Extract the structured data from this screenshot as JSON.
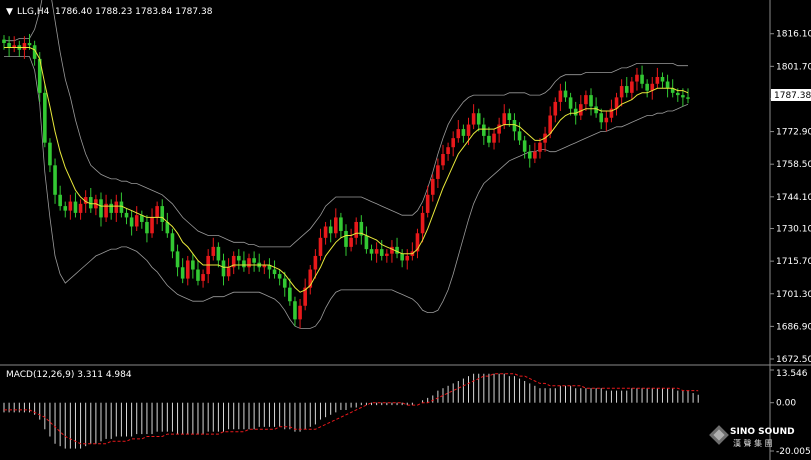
{
  "header": {
    "symbol_label": "LLG,H4",
    "ohlc": "1786.40 1788.23 1783.84 1787.38"
  },
  "indicator": {
    "label": "MACD(12,26,9) 3.311 4.984"
  },
  "watermark": {
    "brand": "SINO SOUND",
    "chinese": "漢 聲 集 團"
  },
  "colors": {
    "background": "#000000",
    "bull": "#e8191b",
    "bear": "#33c833",
    "ma": "#e8e83a",
    "bands": "#9a9a9a",
    "hist": "#d8d8d8",
    "signal": "#e8191b",
    "grid_line": "#8a8a8a"
  },
  "chart_data": [
    {
      "type": "candlestick",
      "title": "LLG,H4",
      "ylim": [
        1672.5,
        1822.6
      ],
      "y_ticks": [
        "1816.10",
        "1801.70",
        "1787.38",
        "1772.90",
        "1758.50",
        "1744.10",
        "1730.10",
        "1715.70",
        "1701.30",
        "1686.90",
        "1672.50"
      ],
      "current_price": "1787.38",
      "series_close": [
        1812,
        1810,
        1811,
        1809,
        1812,
        1811,
        1805,
        1790,
        1768,
        1758,
        1745,
        1740,
        1738,
        1742,
        1737,
        1741,
        1744,
        1739,
        1743,
        1735,
        1741,
        1737,
        1742,
        1737,
        1735,
        1731,
        1736,
        1733,
        1728,
        1735,
        1740,
        1733,
        1728,
        1720,
        1713,
        1708,
        1716,
        1712,
        1707,
        1710,
        1718,
        1722,
        1716,
        1709,
        1713,
        1718,
        1716,
        1713,
        1717,
        1715,
        1713,
        1714,
        1712,
        1710,
        1708,
        1704,
        1698,
        1690,
        1696,
        1704,
        1712,
        1718,
        1726,
        1731,
        1728,
        1735,
        1729,
        1722,
        1726,
        1733,
        1727,
        1721,
        1719,
        1721,
        1718,
        1719,
        1722,
        1719,
        1716,
        1718,
        1720,
        1728,
        1737,
        1745,
        1752,
        1758,
        1763,
        1766,
        1770,
        1774,
        1771,
        1776,
        1781,
        1776,
        1771,
        1768,
        1772,
        1776,
        1781,
        1778,
        1773,
        1769,
        1764,
        1761,
        1764,
        1768,
        1772,
        1780,
        1786,
        1791,
        1788,
        1783,
        1780,
        1785,
        1789,
        1784,
        1781,
        1777,
        1779,
        1783,
        1788,
        1793,
        1790,
        1795,
        1798,
        1794,
        1791,
        1794,
        1797,
        1795,
        1792,
        1790,
        1789,
        1788,
        1787.38
      ],
      "bb_upper": [
        1813,
        1813,
        1813,
        1814,
        1814,
        1814,
        1818,
        1826,
        1838,
        1836,
        1822,
        1808,
        1796,
        1788,
        1778,
        1770,
        1763,
        1758,
        1756,
        1754,
        1753,
        1752,
        1752,
        1751,
        1751,
        1750,
        1750,
        1749,
        1748,
        1747,
        1746,
        1745,
        1743,
        1741,
        1738,
        1735,
        1733,
        1731,
        1729,
        1728,
        1727,
        1727,
        1727,
        1726,
        1725,
        1724,
        1724,
        1724,
        1723,
        1723,
        1722,
        1722,
        1722,
        1722,
        1722,
        1722,
        1722,
        1724,
        1726,
        1728,
        1730,
        1733,
        1736,
        1740,
        1742,
        1744,
        1744,
        1744,
        1744,
        1744,
        1744,
        1743,
        1742,
        1741,
        1740,
        1739,
        1738,
        1737,
        1736,
        1736,
        1736,
        1738,
        1742,
        1748,
        1755,
        1763,
        1770,
        1776,
        1780,
        1783,
        1786,
        1788,
        1789,
        1789,
        1789,
        1789,
        1789,
        1789,
        1789,
        1790,
        1790,
        1790,
        1790,
        1789,
        1789,
        1789,
        1790,
        1792,
        1795,
        1797,
        1798,
        1798,
        1798,
        1798,
        1799,
        1799,
        1799,
        1799,
        1799,
        1799,
        1800,
        1801,
        1801,
        1802,
        1803,
        1803,
        1803,
        1803,
        1803,
        1803,
        1803,
        1803,
        1802,
        1802,
        1802
      ],
      "bb_lower": [
        1806,
        1806,
        1806,
        1806,
        1806,
        1806,
        1800,
        1785,
        1755,
        1735,
        1718,
        1710,
        1706,
        1708,
        1710,
        1712,
        1714,
        1716,
        1718,
        1719,
        1720,
        1721,
        1721,
        1722,
        1722,
        1721,
        1720,
        1718,
        1716,
        1713,
        1711,
        1708,
        1705,
        1703,
        1701,
        1700,
        1699,
        1698,
        1698,
        1698,
        1699,
        1700,
        1700,
        1700,
        1701,
        1702,
        1702,
        1702,
        1702,
        1702,
        1702,
        1701,
        1700,
        1699,
        1697,
        1694,
        1690,
        1687,
        1686,
        1686,
        1686,
        1687,
        1690,
        1695,
        1699,
        1702,
        1703,
        1703,
        1703,
        1703,
        1703,
        1703,
        1703,
        1703,
        1703,
        1703,
        1703,
        1702,
        1701,
        1700,
        1699,
        1697,
        1694,
        1693,
        1693,
        1694,
        1698,
        1703,
        1710,
        1718,
        1726,
        1734,
        1741,
        1746,
        1750,
        1752,
        1754,
        1756,
        1758,
        1760,
        1761,
        1762,
        1763,
        1764,
        1764,
        1765,
        1765,
        1764,
        1764,
        1765,
        1766,
        1767,
        1768,
        1769,
        1770,
        1771,
        1772,
        1773,
        1773,
        1774,
        1775,
        1775,
        1776,
        1777,
        1778,
        1779,
        1780,
        1780,
        1781,
        1781,
        1782,
        1782,
        1783,
        1784,
        1785
      ],
      "ma": [
        1810,
        1810,
        1810,
        1810,
        1810,
        1810,
        1809,
        1805,
        1794,
        1784,
        1773,
        1764,
        1757,
        1752,
        1747,
        1744,
        1742,
        1741,
        1741,
        1740,
        1740,
        1740,
        1740,
        1740,
        1739,
        1738,
        1737,
        1736,
        1735,
        1735,
        1735,
        1735,
        1733,
        1731,
        1728,
        1724,
        1722,
        1719,
        1716,
        1714,
        1714,
        1714,
        1714,
        1713,
        1713,
        1714,
        1714,
        1714,
        1714,
        1714,
        1714,
        1714,
        1714,
        1713,
        1712,
        1710,
        1707,
        1704,
        1702,
        1703,
        1705,
        1709,
        1713,
        1718,
        1721,
        1724,
        1726,
        1727,
        1727,
        1728,
        1728,
        1727,
        1726,
        1725,
        1723,
        1722,
        1721,
        1720,
        1719,
        1719,
        1719,
        1721,
        1725,
        1730,
        1736,
        1742,
        1748,
        1753,
        1758,
        1763,
        1766,
        1769,
        1772,
        1774,
        1774,
        1774,
        1774,
        1775,
        1776,
        1776,
        1776,
        1775,
        1773,
        1771,
        1769,
        1769,
        1770,
        1772,
        1775,
        1778,
        1780,
        1781,
        1781,
        1782,
        1783,
        1783,
        1783,
        1782,
        1782,
        1782,
        1783,
        1785,
        1786,
        1787,
        1789,
        1790,
        1790,
        1791,
        1792,
        1792,
        1792,
        1792,
        1791,
        1791,
        1790
      ]
    },
    {
      "type": "bar",
      "title": "MACD(12,26,9)",
      "macd": 3.311,
      "signal": 4.984,
      "ylim": [
        -20.005,
        13.546
      ],
      "y_ticks": [
        "13.546",
        "0.00",
        "-20.005"
      ],
      "histogram": [
        -4,
        -4,
        -4,
        -4,
        -4,
        -4,
        -5,
        -7,
        -11,
        -14,
        -17,
        -18,
        -19,
        -19,
        -19,
        -19,
        -18,
        -17,
        -17,
        -16,
        -15,
        -15,
        -14,
        -14,
        -14,
        -14,
        -13,
        -13,
        -13,
        -13,
        -12,
        -12,
        -12,
        -12,
        -13,
        -13,
        -13,
        -13,
        -13,
        -13,
        -12,
        -12,
        -12,
        -12,
        -11,
        -11,
        -11,
        -11,
        -11,
        -11,
        -10,
        -10,
        -10,
        -10,
        -10,
        -11,
        -11,
        -12,
        -12,
        -11,
        -10,
        -9,
        -7,
        -6,
        -5,
        -4,
        -3,
        -3,
        -2,
        -2,
        -1,
        -1,
        -1,
        -1,
        -1,
        -1,
        -1,
        -1,
        -1,
        -1,
        -1,
        0,
        1,
        2,
        3,
        5,
        6,
        7,
        8,
        9,
        10,
        11,
        12,
        12,
        12,
        12,
        12,
        12,
        12,
        11,
        11,
        10,
        9,
        8,
        7,
        6,
        6,
        6,
        6,
        7,
        7,
        7,
        6,
        6,
        6,
        6,
        6,
        6,
        5,
        5,
        5,
        5,
        5,
        6,
        6,
        6,
        6,
        6,
        6,
        6,
        6,
        6,
        5,
        5,
        5,
        4,
        3.3
      ],
      "signal_line": [
        -3,
        -3,
        -3,
        -3,
        -3,
        -3,
        -4,
        -5,
        -6,
        -8,
        -10,
        -12,
        -14,
        -15,
        -16,
        -17,
        -17,
        -17,
        -17,
        -17,
        -17,
        -16,
        -16,
        -16,
        -16,
        -15,
        -15,
        -15,
        -14,
        -14,
        -14,
        -14,
        -13,
        -13,
        -13,
        -13,
        -13,
        -13,
        -13,
        -13,
        -13,
        -13,
        -13,
        -12,
        -12,
        -12,
        -12,
        -12,
        -11,
        -11,
        -11,
        -11,
        -11,
        -11,
        -10,
        -10,
        -10,
        -11,
        -11,
        -11,
        -11,
        -11,
        -10,
        -9,
        -8,
        -7,
        -6,
        -5,
        -4,
        -3,
        -2,
        -1,
        0,
        0,
        0,
        0,
        0,
        0,
        0,
        -1,
        -1,
        -1,
        0,
        0,
        1,
        2,
        3,
        4,
        5,
        6,
        7,
        8,
        9,
        10,
        11,
        11,
        12,
        12,
        12,
        12,
        12,
        11,
        11,
        10,
        9,
        8,
        8,
        7,
        7,
        7,
        7,
        7,
        7,
        7,
        6,
        6,
        6,
        6,
        6,
        6,
        6,
        6,
        6,
        6,
        6,
        6,
        6,
        6,
        6,
        6,
        6,
        6,
        6,
        5,
        5,
        5,
        4.98
      ]
    }
  ]
}
